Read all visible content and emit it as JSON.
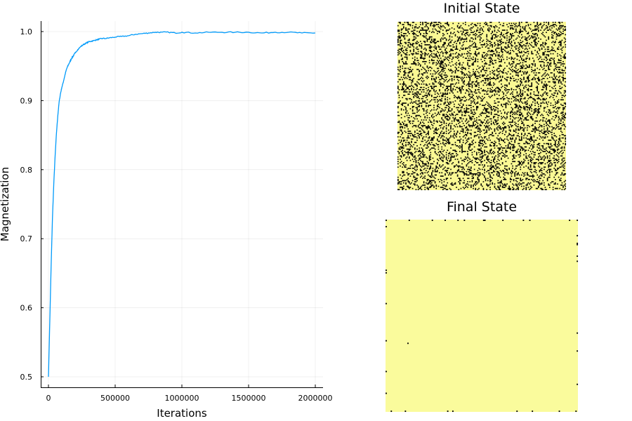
{
  "chart_data": [
    {
      "type": "line",
      "xlabel": "Iterations",
      "ylabel": "Magnetization",
      "xlim": [
        0,
        2000000
      ],
      "ylim": [
        0.5,
        1.0
      ],
      "xticks": [
        "0",
        "500000",
        "1000000",
        "1500000",
        "2000000"
      ],
      "yticks": [
        "0.5",
        "0.6",
        "0.7",
        "0.8",
        "0.9",
        "1.0"
      ],
      "grid": true,
      "color": "#009AFA",
      "series": [
        {
          "x": [
            0,
            10000,
            20000,
            30000,
            40000,
            50000,
            60000,
            70000,
            80000,
            90000,
            100000,
            110000,
            120000,
            130000,
            140000,
            150000,
            160000,
            170000,
            180000,
            190000,
            200000,
            220000,
            240000,
            260000,
            280000,
            300000,
            320000,
            340000,
            360000,
            380000,
            400000,
            430000,
            460000,
            500000,
            550000,
            600000,
            650000,
            700000,
            750000,
            800000,
            850000,
            900000,
            950000,
            1000000,
            1100000,
            1200000,
            1300000,
            1400000,
            1500000,
            1600000,
            1700000,
            1800000,
            1900000,
            2000000
          ],
          "y": [
            0.5,
            0.58,
            0.66,
            0.73,
            0.78,
            0.82,
            0.853,
            0.878,
            0.898,
            0.91,
            0.919,
            0.926,
            0.934,
            0.942,
            0.948,
            0.952,
            0.956,
            0.96,
            0.963,
            0.966,
            0.969,
            0.974,
            0.978,
            0.981,
            0.983,
            0.985,
            0.986,
            0.987,
            0.988,
            0.989,
            0.99,
            0.99,
            0.991,
            0.992,
            0.993,
            0.994,
            0.996,
            0.997,
            0.998,
            0.999,
            0.999,
            0.999,
            0.998,
            0.999,
            0.998,
            0.999,
            0.999,
            0.999,
            0.999,
            0.998,
            0.999,
            0.999,
            0.998,
            0.998
          ]
        }
      ]
    },
    {
      "type": "heatmap",
      "title": "Initial State",
      "grid_size": [
        150,
        150
      ],
      "colors": {
        "up": "#FAF894",
        "down": "#000000"
      },
      "fraction_up": 0.75
    },
    {
      "type": "heatmap",
      "title": "Final State",
      "grid_size": [
        150,
        150
      ],
      "colors": {
        "up": "#FAFB9C",
        "down": "#000000"
      },
      "fraction_up": 0.998
    }
  ]
}
